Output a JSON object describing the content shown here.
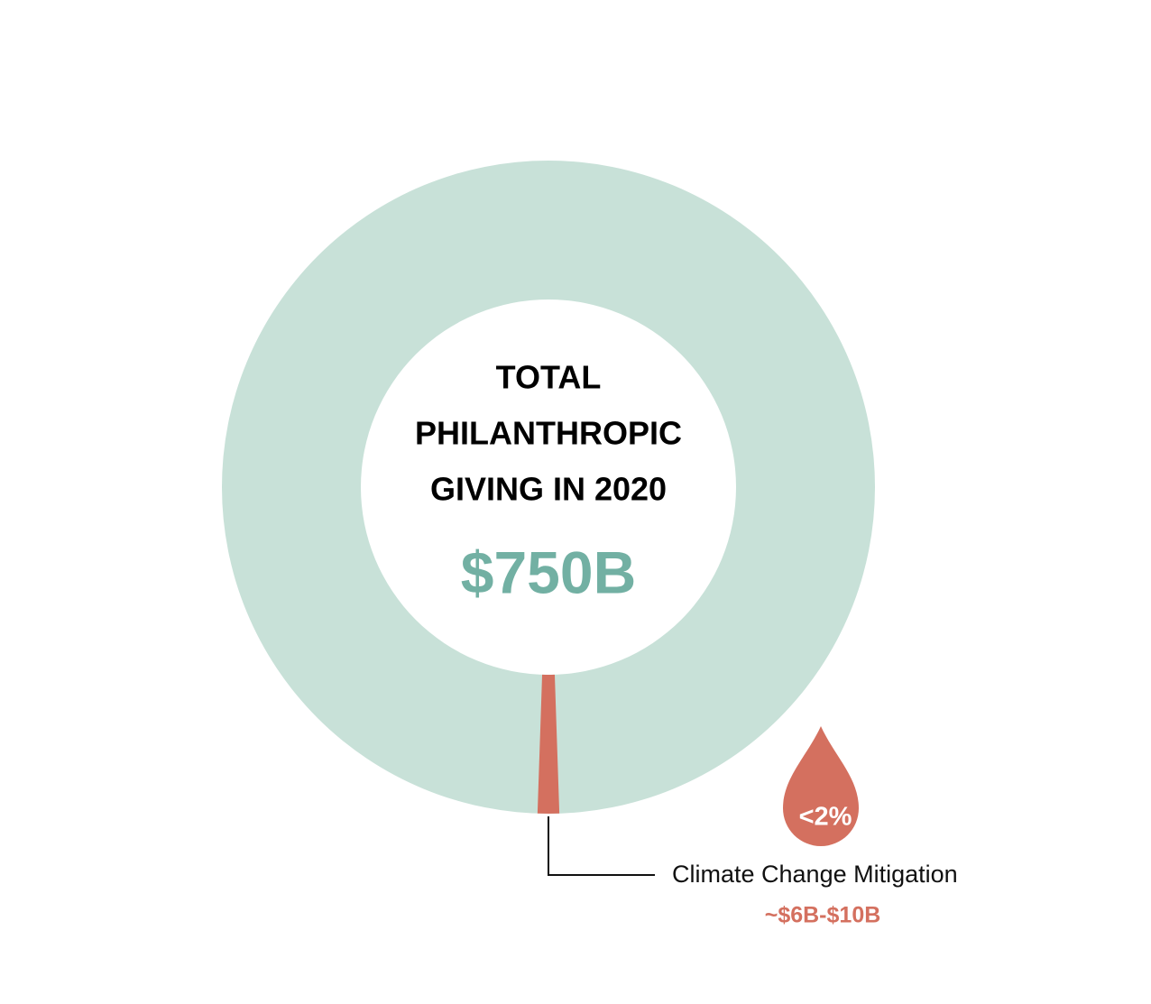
{
  "chart_data": {
    "type": "donut",
    "title_lines": [
      "TOTAL",
      "PHILANTHROPIC",
      "GIVING IN 2020"
    ],
    "total": {
      "value": 750,
      "label": "$750B"
    },
    "ring_color": "#c8e1d8",
    "categories": [
      "Climate Change Mitigation"
    ],
    "values": [
      8
    ],
    "value_labels": [
      "~$6B-$10B"
    ],
    "color": "#d4705f",
    "share_label": "<2%"
  }
}
